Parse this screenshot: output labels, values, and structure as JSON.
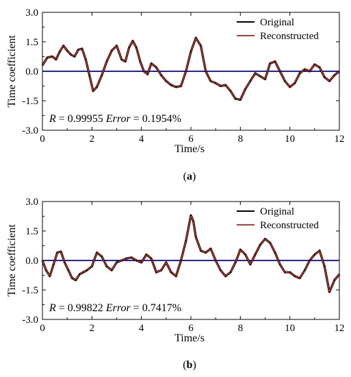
{
  "chart_data": [
    {
      "type": "line",
      "panel_label": "a",
      "xlabel": "Time/s",
      "ylabel": "Time coefficient",
      "xlim": [
        0,
        12
      ],
      "ylim": [
        -3.0,
        3.0
      ],
      "xticks": [
        0,
        2,
        4,
        6,
        8,
        10,
        12
      ],
      "yticks": [
        3.0,
        1.5,
        0.0,
        -1.5,
        -3.0
      ],
      "ytick_labels": [
        "3.0",
        "1.5",
        "0.0",
        "-1.5",
        "-3.0"
      ],
      "legend_position": "top-right",
      "annotation": {
        "r_label": "R",
        "r_value": " = 0.99955",
        "err_label": "Error",
        "err_value": " = 0.1954%"
      },
      "zero_line": {
        "y": 0.0,
        "color": "#1f1fcf"
      },
      "series": [
        {
          "name": "Original",
          "color": "#000000",
          "x": [
            0,
            0.2,
            0.4,
            0.55,
            0.7,
            0.85,
            1.0,
            1.15,
            1.3,
            1.45,
            1.6,
            1.75,
            1.9,
            2.05,
            2.2,
            2.4,
            2.6,
            2.8,
            3.0,
            3.2,
            3.35,
            3.5,
            3.65,
            3.8,
            3.95,
            4.1,
            4.25,
            4.4,
            4.6,
            4.8,
            5.0,
            5.2,
            5.4,
            5.6,
            5.8,
            6.0,
            6.2,
            6.4,
            6.6,
            6.8,
            7.0,
            7.2,
            7.4,
            7.6,
            7.8,
            8.0,
            8.2,
            8.4,
            8.6,
            8.8,
            9.0,
            9.2,
            9.4,
            9.6,
            9.8,
            10.0,
            10.2,
            10.4,
            10.6,
            10.8,
            11.0,
            11.2,
            11.4,
            11.6,
            11.8,
            12.0
          ],
          "y": [
            0.3,
            0.7,
            0.75,
            0.6,
            1.0,
            1.3,
            1.05,
            0.85,
            0.75,
            1.1,
            1.15,
            0.6,
            -0.2,
            -1.0,
            -0.8,
            -0.2,
            0.5,
            1.05,
            1.3,
            0.6,
            0.5,
            1.2,
            1.55,
            1.2,
            0.5,
            0.0,
            -0.15,
            0.4,
            0.2,
            -0.2,
            -0.5,
            -0.7,
            -0.8,
            -0.75,
            0.0,
            1.0,
            1.7,
            1.3,
            0.0,
            -0.5,
            -0.6,
            -0.75,
            -0.7,
            -1.0,
            -1.4,
            -1.45,
            -0.9,
            -0.5,
            -0.1,
            -0.25,
            -0.4,
            0.4,
            0.5,
            0.0,
            -0.5,
            -0.8,
            -0.6,
            -0.1,
            0.1,
            0.0,
            0.35,
            0.2,
            -0.3,
            -0.5,
            -0.2,
            0.0
          ]
        },
        {
          "name": "Reconstructed",
          "color": "#c0392b"
        }
      ]
    },
    {
      "type": "line",
      "panel_label": "b",
      "xlabel": "Time/s",
      "ylabel": "Time coefficient",
      "xlim": [
        0,
        12
      ],
      "ylim": [
        -3.0,
        3.0
      ],
      "xticks": [
        0,
        2,
        4,
        6,
        8,
        10,
        12
      ],
      "yticks": [
        3.0,
        1.5,
        0.0,
        -1.5,
        -3.0
      ],
      "ytick_labels": [
        "3.0",
        "1.5",
        "0.0",
        "-1.5",
        "-3.0"
      ],
      "legend_position": "top-right",
      "annotation": {
        "r_label": "R",
        "r_value": " = 0.99822",
        "err_label": "Error",
        "err_value": " = 0.7417%"
      },
      "zero_line": {
        "y": 0.0,
        "color": "#1f1fcf"
      },
      "series": [
        {
          "name": "Original",
          "color": "#000000",
          "x": [
            0,
            0.15,
            0.3,
            0.45,
            0.6,
            0.75,
            0.9,
            1.05,
            1.2,
            1.35,
            1.5,
            1.65,
            1.8,
            2.0,
            2.2,
            2.4,
            2.6,
            2.8,
            3.0,
            3.2,
            3.4,
            3.6,
            3.8,
            4.0,
            4.2,
            4.4,
            4.6,
            4.8,
            5.0,
            5.2,
            5.4,
            5.6,
            5.8,
            6.0,
            6.1,
            6.2,
            6.4,
            6.6,
            6.8,
            7.0,
            7.2,
            7.4,
            7.6,
            7.8,
            8.0,
            8.2,
            8.4,
            8.6,
            8.8,
            9.0,
            9.2,
            9.4,
            9.6,
            9.8,
            10.0,
            10.2,
            10.4,
            10.6,
            10.8,
            11.0,
            11.2,
            11.4,
            11.6,
            11.8,
            12.0
          ],
          "y": [
            0.0,
            -0.5,
            -0.8,
            -0.2,
            0.4,
            0.45,
            -0.1,
            -0.5,
            -0.9,
            -1.0,
            -0.7,
            -0.6,
            -0.5,
            -0.3,
            0.4,
            0.2,
            -0.3,
            -0.5,
            -0.1,
            0.0,
            0.1,
            0.15,
            0.0,
            -0.1,
            0.3,
            0.1,
            -0.6,
            -0.5,
            -0.1,
            -0.6,
            -0.8,
            0.0,
            1.0,
            2.3,
            2.0,
            1.2,
            0.5,
            0.4,
            0.6,
            0.0,
            -0.5,
            -0.8,
            -0.6,
            -0.1,
            0.55,
            0.3,
            -0.2,
            0.3,
            0.8,
            1.1,
            0.9,
            0.4,
            -0.2,
            -0.6,
            -0.6,
            -0.8,
            -0.9,
            -0.5,
            0.0,
            0.3,
            0.5,
            -0.3,
            -1.6,
            -1.0,
            -0.7
          ]
        },
        {
          "name": "Reconstructed",
          "color": "#c0392b"
        }
      ]
    }
  ]
}
